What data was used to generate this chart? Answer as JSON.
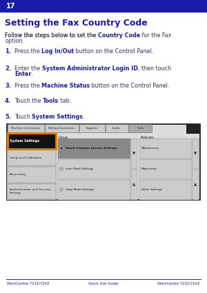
{
  "page_num": "17",
  "header_bg": "#1a1aaa",
  "header_text_color": "#ffffff",
  "title": "Setting the Fax Country Code",
  "title_color": "#1a1aaa",
  "body_color": "#333366",
  "bold_color": "#1a1aaa",
  "footer_text_left": "WorkCentre 7232/7242",
  "footer_text_center": "Quick Use Guide",
  "footer_text_right": "WorkCentre 7232/7242",
  "footer_color": "#1a1aaa",
  "bg_color": "#ffffff",
  "highlight_orange": "#e08000",
  "tab_labels": [
    "Machine Information",
    "Billing Information",
    "Supplies",
    "Faults",
    "Tools"
  ],
  "left_panel": [
    "System Settings",
    "Setup and Calibration",
    "Accounting",
    "Authentication and Security\nSettings"
  ],
  "group_items": [
    "Touch Common Service Settings",
    "Scan Mode Settings",
    "Copy Mode Settings"
  ],
  "features_items": [
    "Maintenance",
    "Watermark",
    "Other Settings"
  ]
}
